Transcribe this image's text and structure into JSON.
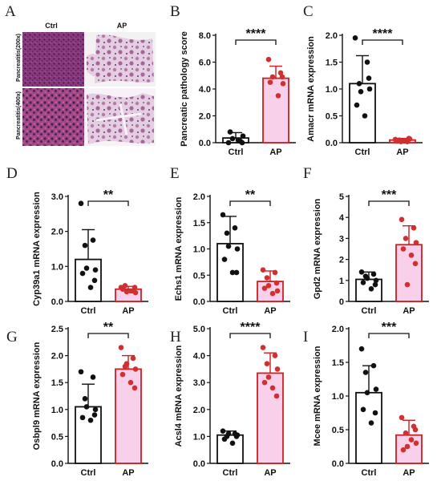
{
  "histology": {
    "letter": "A",
    "columns": [
      "Ctrl",
      "AP"
    ],
    "rows": [
      "Pancreatitis(200x)",
      "Pancreatitis(400x)"
    ]
  },
  "colors": {
    "ctrl": "#111111",
    "ap": "#cc1f1f",
    "ap_fill": "#f8d0ea",
    "ap_dot": "#d03030",
    "ctrl_dot": "#111111"
  },
  "chart_data": [
    {
      "letter": "B",
      "type": "bar",
      "categories": [
        "Ctrl",
        "AP"
      ],
      "ylabel": "Pancreatic pathology score",
      "ylim": [
        0,
        8
      ],
      "yticks": [
        "0.0",
        "2.0",
        "4.0",
        "6.0",
        "8.0"
      ],
      "values": [
        0.35,
        4.8
      ],
      "errors": [
        0.4,
        0.9
      ],
      "significance": "****",
      "points": [
        [
          0,
          0.1,
          0.3,
          0.5,
          0.8,
          0.2,
          0.0
        ],
        [
          6.2,
          5.2,
          4.9,
          4.4,
          4.5,
          3.5,
          4.9
        ]
      ]
    },
    {
      "letter": "C",
      "type": "bar",
      "categories": [
        "Ctrl",
        "AP"
      ],
      "ylabel": "Amacr mRNA expression",
      "ylim": [
        0,
        2
      ],
      "yticks": [
        "0.0",
        "0.5",
        "1.0",
        "1.5",
        "2.0"
      ],
      "values": [
        1.1,
        0.05
      ],
      "errors": [
        0.52,
        0.03
      ],
      "significance": "****",
      "points": [
        [
          1.95,
          1.5,
          1.1,
          1.0,
          0.7,
          0.5,
          1.2,
          0.95
        ],
        [
          0.06,
          0.02,
          0.05,
          0.07,
          0.03,
          0.04,
          0.08,
          0.02
        ]
      ]
    },
    {
      "letter": "D",
      "type": "bar",
      "categories": [
        "Ctrl",
        "AP"
      ],
      "ylabel": "Cyp39a1 mRNA expression",
      "ylim": [
        0,
        3
      ],
      "yticks": [
        "0.0",
        "1.0",
        "2.0",
        "3.0"
      ],
      "values": [
        1.2,
        0.35
      ],
      "errors": [
        0.85,
        0.08
      ],
      "significance": "**",
      "points": [
        [
          2.8,
          1.75,
          1.6,
          0.9,
          0.8,
          0.4,
          0.6,
          0.95
        ],
        [
          0.4,
          0.3,
          0.45,
          0.25,
          0.35,
          0.3,
          0.4,
          0.28
        ]
      ]
    },
    {
      "letter": "E",
      "type": "bar",
      "categories": [
        "Ctrl",
        "AP"
      ],
      "ylabel": "Echs1 mRNA expression",
      "ylim": [
        0,
        2
      ],
      "yticks": [
        "0.0",
        "0.5",
        "1.0",
        "1.5",
        "2.0"
      ],
      "values": [
        1.1,
        0.38
      ],
      "errors": [
        0.52,
        0.2
      ],
      "significance": "**",
      "points": [
        [
          1.65,
          1.4,
          1.3,
          1.0,
          0.8,
          0.55,
          0.55,
          1.05
        ],
        [
          0.6,
          0.55,
          0.45,
          0.2,
          0.25,
          0.15,
          0.35,
          0.3
        ]
      ]
    },
    {
      "letter": "F",
      "type": "bar",
      "categories": [
        "Ctrl",
        "AP"
      ],
      "ylabel": "Gpd2 mRNA expression",
      "ylim": [
        0,
        5
      ],
      "yticks": [
        "0",
        "1",
        "2",
        "3",
        "4",
        "5"
      ],
      "values": [
        1.05,
        2.7
      ],
      "errors": [
        0.35,
        0.9
      ],
      "significance": "***",
      "points": [
        [
          1.4,
          1.3,
          1.2,
          1.0,
          0.9,
          0.6,
          0.8,
          1.1
        ],
        [
          3.9,
          3.5,
          3.0,
          2.8,
          2.5,
          2.2,
          1.8,
          0.8
        ]
      ]
    },
    {
      "letter": "G",
      "type": "bar",
      "categories": [
        "Ctrl",
        "AP"
      ],
      "ylabel": "Osbpl9 mRNA expression",
      "ylim": [
        0,
        2.5
      ],
      "yticks": [
        "0.0",
        "0.5",
        "1.0",
        "1.5",
        "2.0",
        "2.5"
      ],
      "values": [
        1.05,
        1.75
      ],
      "errors": [
        0.42,
        0.25
      ],
      "significance": "**",
      "points": [
        [
          1.7,
          1.6,
          1.2,
          1.0,
          0.85,
          0.8,
          0.9,
          1.05
        ],
        [
          2.15,
          1.95,
          1.8,
          1.75,
          1.65,
          1.5,
          1.4,
          1.85
        ]
      ]
    },
    {
      "letter": "H",
      "type": "bar",
      "categories": [
        "Ctrl",
        "AP"
      ],
      "ylabel": "Acsl4 mRNA expression",
      "ylim": [
        0,
        5
      ],
      "yticks": [
        "0.0",
        "1.0",
        "2.0",
        "3.0",
        "4.0",
        "5.0"
      ],
      "values": [
        1.05,
        3.35
      ],
      "errors": [
        0.15,
        0.75
      ],
      "significance": "****",
      "points": [
        [
          1.2,
          1.1,
          1.0,
          1.05,
          0.9,
          0.75,
          1.0,
          1.1
        ],
        [
          4.3,
          4.0,
          3.7,
          3.5,
          3.0,
          2.8,
          2.5,
          3.2
        ]
      ]
    },
    {
      "letter": "I",
      "type": "bar",
      "categories": [
        "Ctrl",
        "AP"
      ],
      "ylabel": "Mcee mRNA expression",
      "ylim": [
        0,
        2
      ],
      "yticks": [
        "0.0",
        "0.5",
        "1.0",
        "1.5",
        "2.0"
      ],
      "values": [
        1.05,
        0.42
      ],
      "errors": [
        0.4,
        0.22
      ],
      "significance": "***",
      "points": [
        [
          1.7,
          1.45,
          1.35,
          1.1,
          0.8,
          0.6,
          0.75,
          1.05
        ],
        [
          0.68,
          0.55,
          0.45,
          0.3,
          0.2,
          0.35,
          0.5,
          0.25
        ]
      ]
    }
  ]
}
